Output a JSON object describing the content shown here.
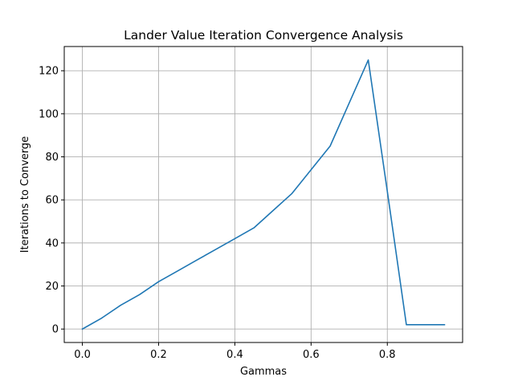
{
  "chart_data": {
    "type": "line",
    "title": "Lander Value Iteration Convergence Analysis",
    "xlabel": "Gammas",
    "ylabel": "Iterations to Converge",
    "xlim": [
      -0.0475,
      0.9975
    ],
    "ylim": [
      -6.25,
      131.25
    ],
    "xticks": [
      0.0,
      0.2,
      0.4,
      0.6,
      0.8
    ],
    "xtick_labels": [
      "0.0",
      "0.2",
      "0.4",
      "0.6",
      "0.8"
    ],
    "yticks": [
      0,
      20,
      40,
      60,
      80,
      100,
      120
    ],
    "ytick_labels": [
      "0",
      "20",
      "40",
      "60",
      "80",
      "100",
      "120"
    ],
    "grid": true,
    "series": [
      {
        "color": "#1f77b4",
        "x": [
          0.0,
          0.05,
          0.1,
          0.15,
          0.2,
          0.25,
          0.3,
          0.35,
          0.4,
          0.45,
          0.5,
          0.55,
          0.6,
          0.65,
          0.7,
          0.75,
          0.8,
          0.85,
          0.9,
          0.95
        ],
        "y": [
          0,
          5,
          11,
          16,
          22,
          27,
          32,
          37,
          42,
          47,
          55,
          63,
          74,
          85,
          105,
          125,
          64,
          2,
          2,
          2
        ]
      }
    ]
  }
}
